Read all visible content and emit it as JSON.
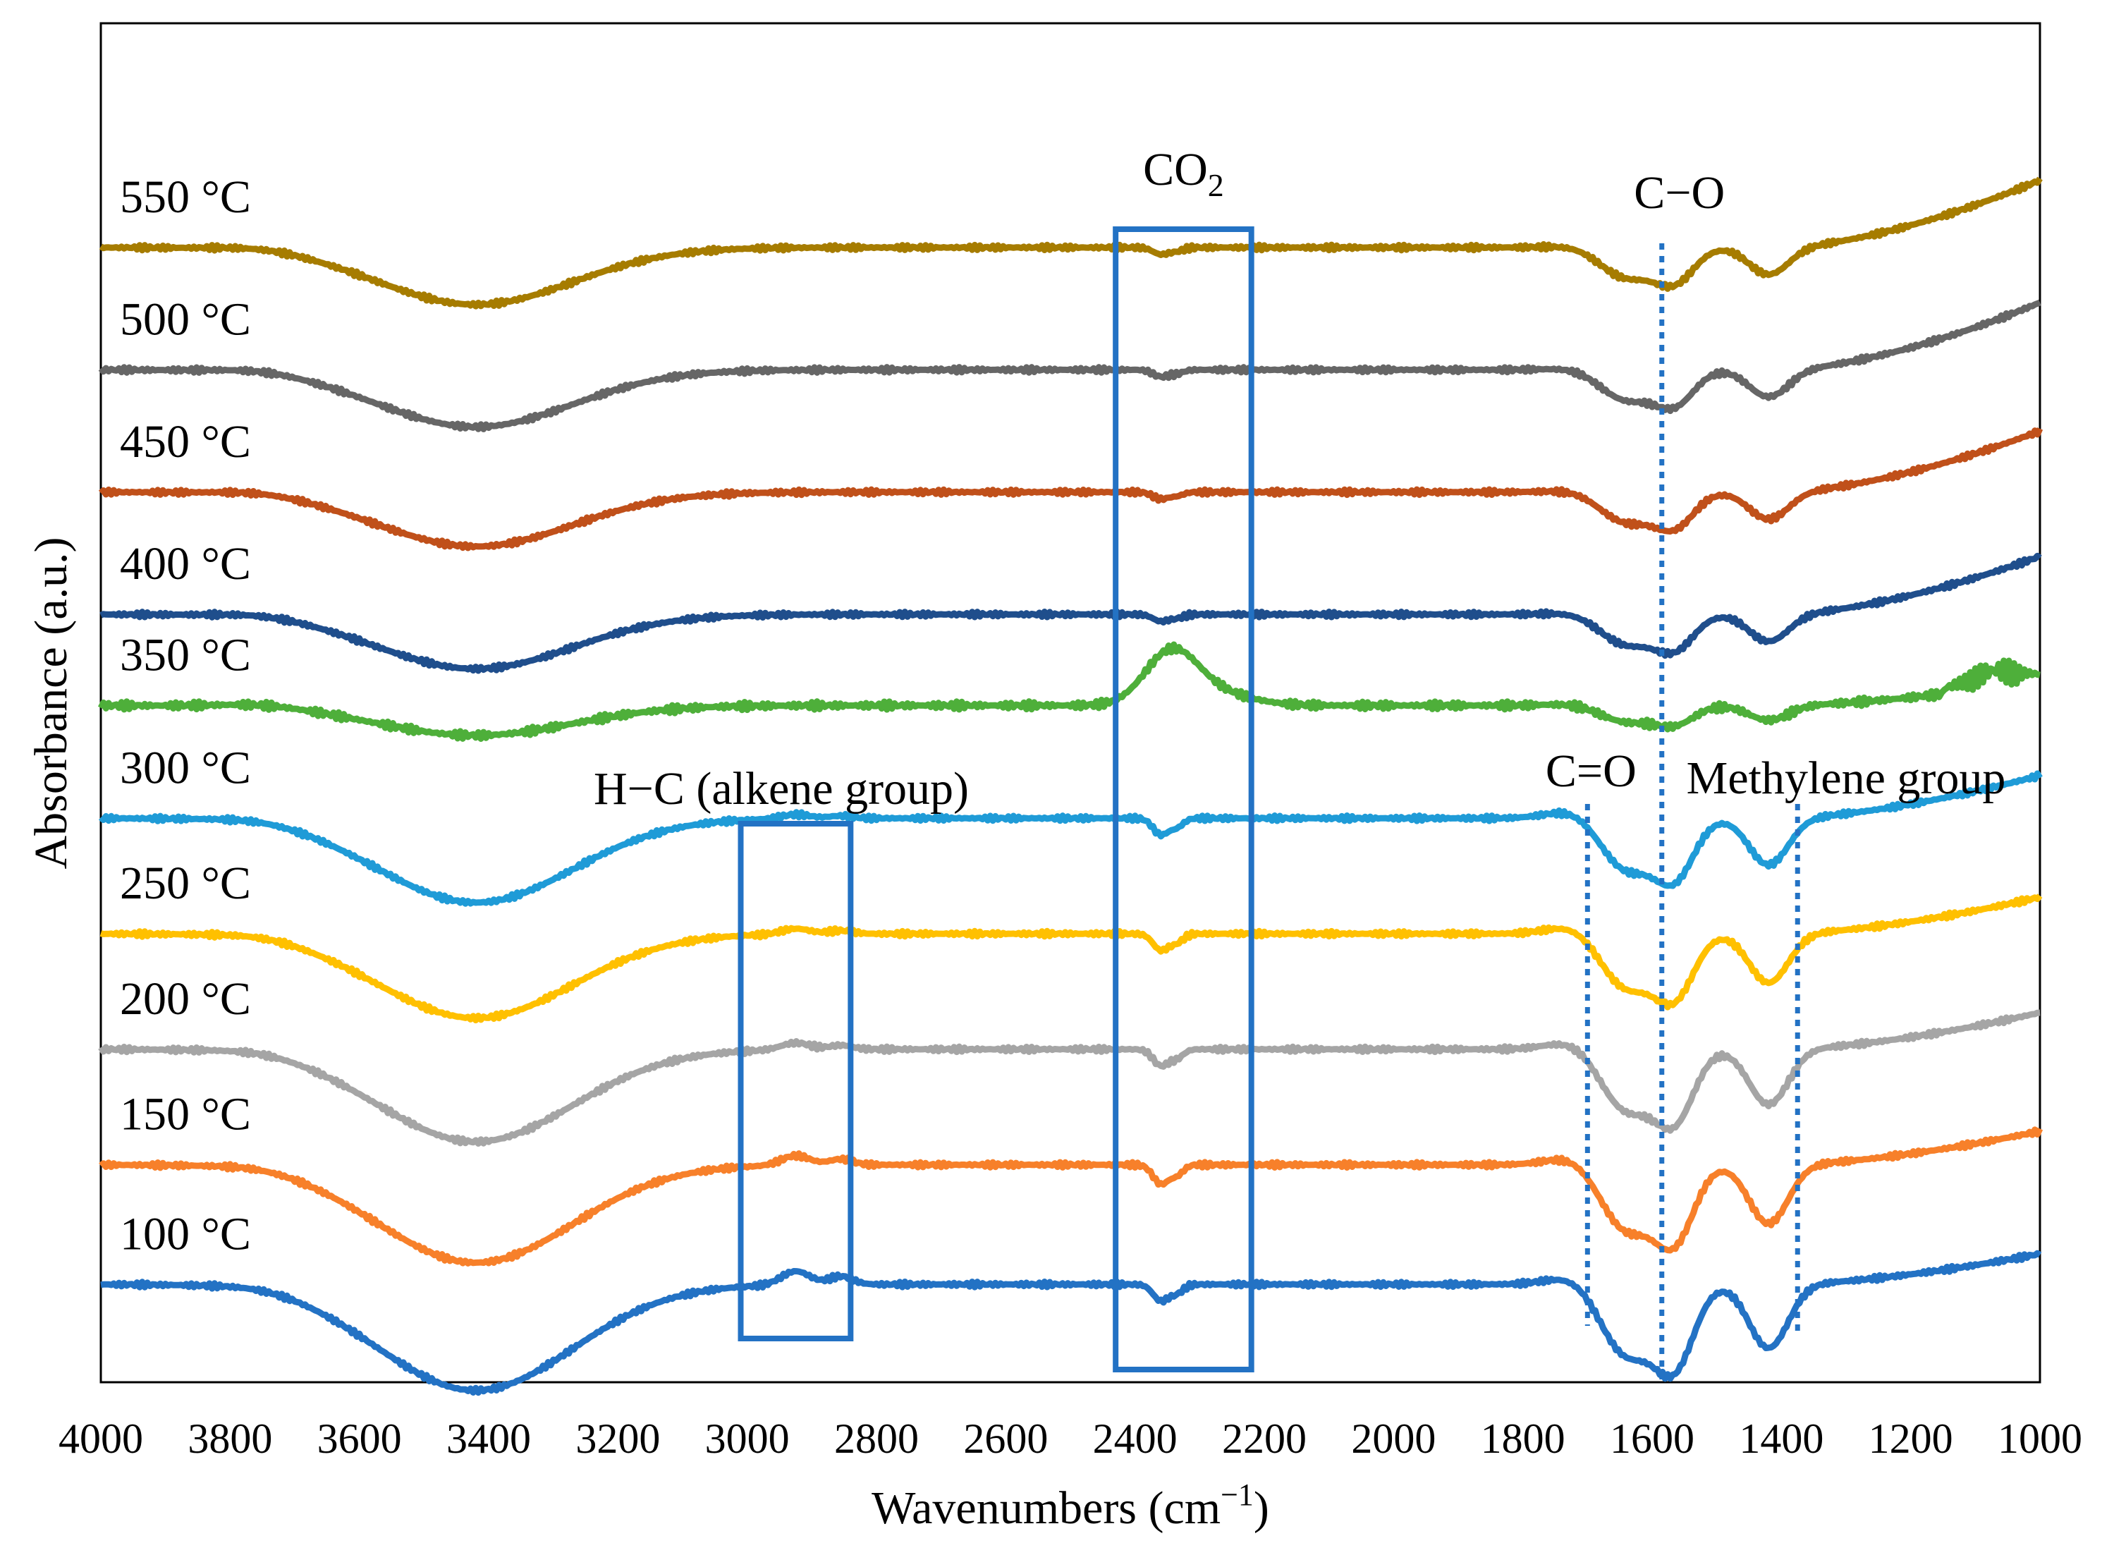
{
  "chart_data": {
    "type": "line",
    "xlabel": "Wavenumbers (cm",
    "xlabel_sup": "−1",
    "xlabel_end": ")",
    "ylabel": "Absorbance (a.u.)",
    "xlim": [
      4000,
      1000
    ],
    "x_reversed": true,
    "x_ticks": [
      "4000",
      "3800",
      "3600",
      "3400",
      "3200",
      "3000",
      "2800",
      "2600",
      "2400",
      "2200",
      "2000",
      "1800",
      "1600",
      "1400",
      "1200",
      "1000"
    ],
    "grid": false,
    "legend": "none",
    "labels_position": "left",
    "series": [
      {
        "name": "550 °C",
        "color": "#A67C00",
        "baseline": 8.35,
        "depth": 0.42,
        "shoulder": 0.22,
        "tail": 1.1,
        "h_c": 0.0,
        "co2": -0.05,
        "noise": 0.02
      },
      {
        "name": "500 °C",
        "color": "#666666",
        "baseline": 7.45,
        "depth": 0.42,
        "shoulder": 0.22,
        "tail": 1.1,
        "h_c": 0.0,
        "co2": -0.05,
        "noise": 0.02
      },
      {
        "name": "450 °C",
        "color": "#C0501A",
        "baseline": 6.55,
        "depth": 0.4,
        "shoulder": 0.22,
        "tail": 1.0,
        "h_c": 0.0,
        "co2": -0.05,
        "noise": 0.02
      },
      {
        "name": "400 °C",
        "color": "#1F4E8C",
        "baseline": 5.65,
        "depth": 0.4,
        "shoulder": 0.22,
        "tail": 0.95,
        "h_c": 0.0,
        "co2": -0.05,
        "noise": 0.02
      },
      {
        "name": "350 °C",
        "color": "#4EAF3A",
        "baseline": 4.98,
        "depth": 0.22,
        "shoulder": 0.12,
        "tail": 0.4,
        "h_c": 0.0,
        "co2": 0.35,
        "noise": 0.03
      },
      {
        "name": "300 °C",
        "color": "#1F9BD7",
        "baseline": 4.15,
        "depth": 0.62,
        "shoulder": 0.38,
        "tail": 0.7,
        "h_c": 0.03,
        "co2": -0.12,
        "noise": 0.02
      },
      {
        "name": "250 °C",
        "color": "#FFC000",
        "baseline": 3.3,
        "depth": 0.62,
        "shoulder": 0.4,
        "tail": 0.6,
        "h_c": 0.04,
        "co2": -0.12,
        "noise": 0.02
      },
      {
        "name": "200 °C",
        "color": "#A5A5A5",
        "baseline": 2.45,
        "depth": 0.68,
        "shoulder": 0.45,
        "tail": 0.6,
        "h_c": 0.05,
        "co2": -0.12,
        "noise": 0.02
      },
      {
        "name": "150 °C",
        "color": "#F7802A",
        "baseline": 1.6,
        "depth": 0.72,
        "shoulder": 0.48,
        "tail": 0.55,
        "h_c": 0.07,
        "co2": -0.14,
        "noise": 0.02
      },
      {
        "name": "100 °C",
        "color": "#2372C4",
        "baseline": 0.72,
        "depth": 0.78,
        "shoulder": 0.52,
        "tail": 0.5,
        "h_c": 0.1,
        "co2": -0.12,
        "noise": 0.02
      }
    ],
    "annotations": {
      "co2": {
        "label": "CO",
        "sub": "2",
        "x_range": [
          2430,
          2220
        ]
      },
      "c_o": {
        "label": "C−O",
        "x": 1585
      },
      "c_eq_o": {
        "label": "C=O",
        "x": 1700
      },
      "methylene": {
        "label": "Methylene group",
        "x": 1375
      },
      "h_c": {
        "label": "H−C (alkene group)",
        "x_range": [
          3010,
          2840
        ]
      }
    },
    "box_color": "#2372C4"
  }
}
